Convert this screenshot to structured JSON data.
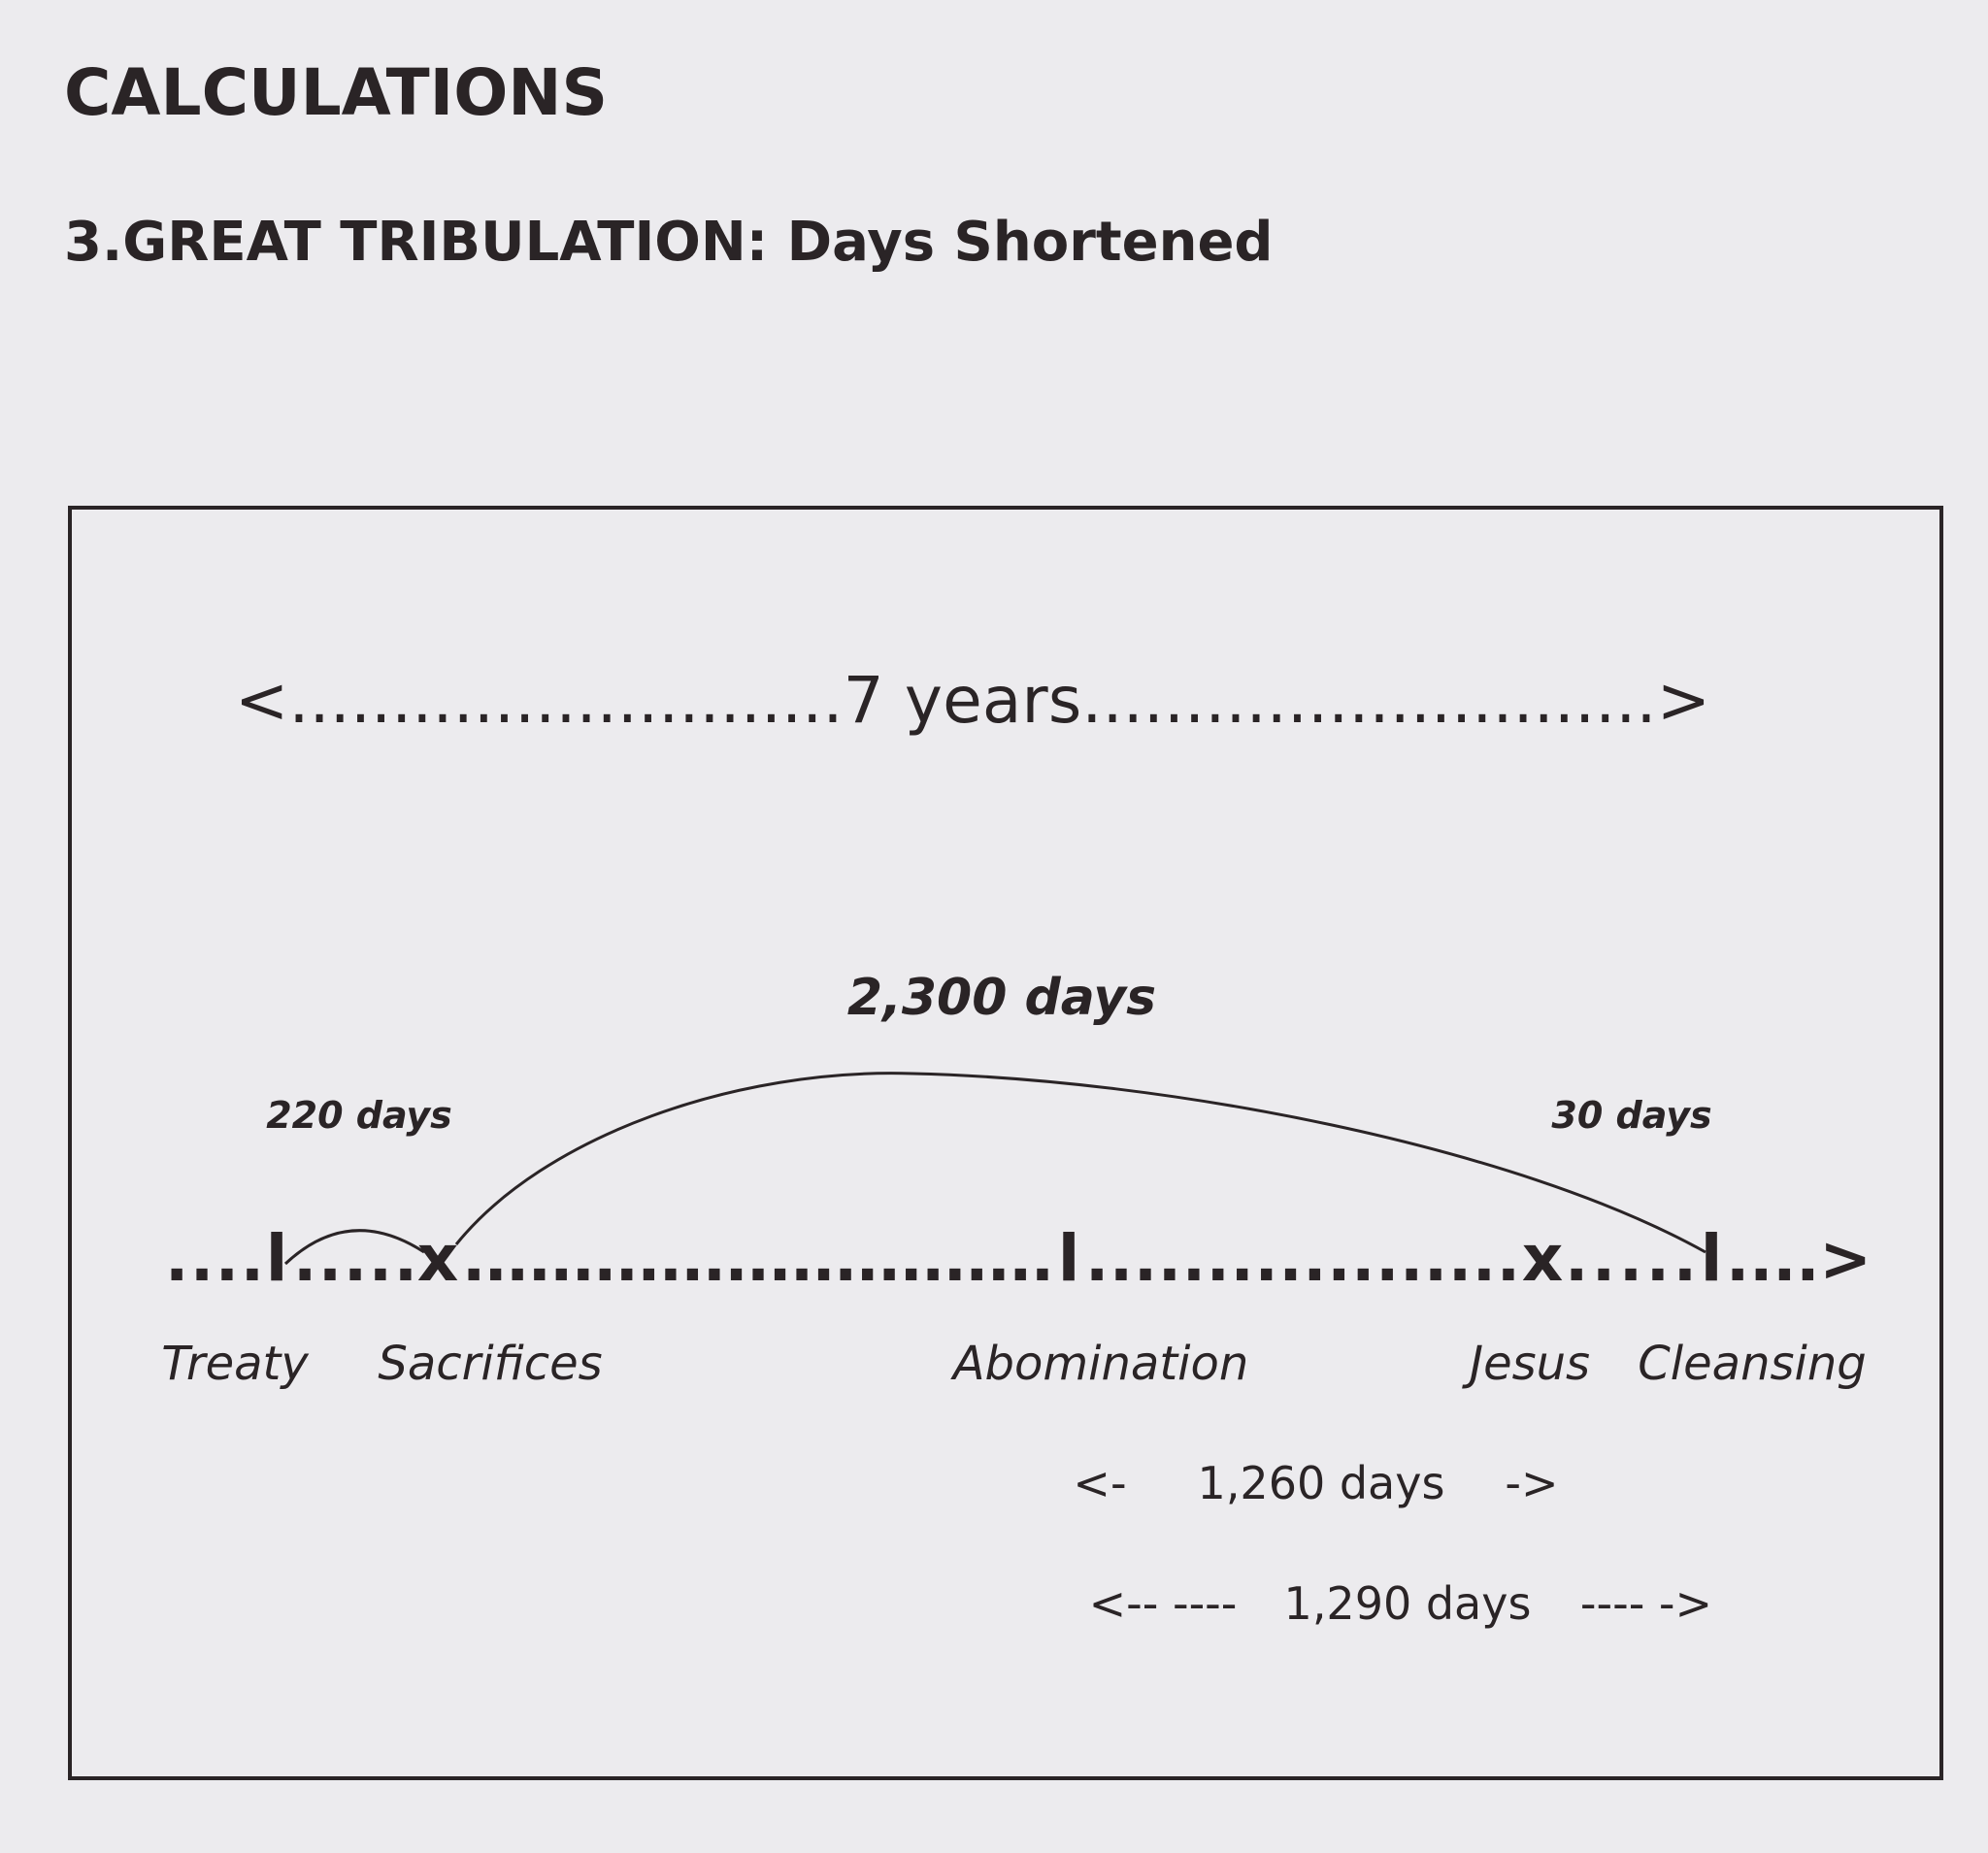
{
  "header": {
    "title": "CALCULATIONS",
    "subtitle": "3.GREAT TRIBULATION: Days Shortened"
  },
  "diagram": {
    "span": "<...........................7 years............................>",
    "arcs": {
      "main": "2,300 days",
      "left": "220 days",
      "right": "30 days"
    },
    "timeline": [
      "....",
      "l",
      ".....",
      "x",
      "...........................",
      "l",
      "..................",
      "x",
      ".....",
      "l",
      "....>"
    ],
    "events": [
      "Treaty",
      "Sacrifices",
      "Abomination",
      "Jesus",
      "Cleansing"
    ],
    "periods": [
      {
        "left": "<-",
        "label": "1,260 days",
        "right": "->"
      },
      {
        "left": "<-- ----",
        "label": "1,290 days",
        "right": "---- ->"
      }
    ]
  }
}
